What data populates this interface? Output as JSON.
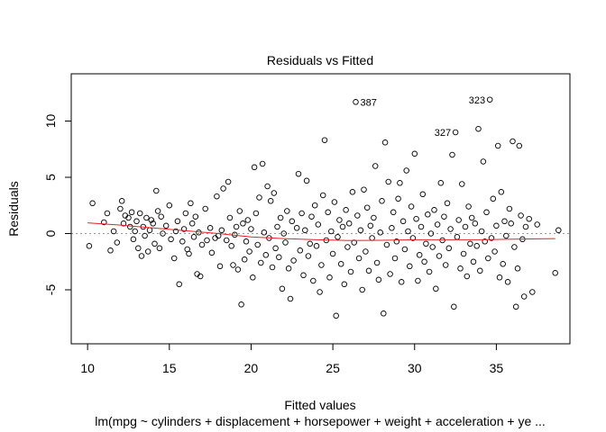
{
  "chart_data": {
    "type": "scatter",
    "title": "Residuals vs Fitted",
    "xlabel": "Fitted values",
    "ylabel": "Residuals",
    "subtitle": "lm(mpg ~ cylinders + displacement + horsepower + weight + acceleration + ye ...",
    "xlim": [
      9.0,
      39.5
    ],
    "ylim": [
      -9.8,
      14.2
    ],
    "x_ticks": [
      10,
      15,
      20,
      25,
      30,
      35
    ],
    "y_ticks": [
      -5,
      0,
      5,
      10
    ],
    "grid": false,
    "zero_line": 0,
    "colors": {
      "points": "#000000",
      "smooth": "#e8202a",
      "zero_line": "#999999"
    },
    "labeled_points": [
      {
        "label": "387",
        "x": 26.4,
        "y": 11.7
      },
      {
        "label": "323",
        "x": 34.6,
        "y": 11.9
      },
      {
        "label": "327",
        "x": 32.5,
        "y": 9.0
      }
    ],
    "smooth_line": [
      [
        10.0,
        0.95
      ],
      [
        12.0,
        0.75
      ],
      [
        14.0,
        0.5
      ],
      [
        16.0,
        0.25
      ],
      [
        18.0,
        0.0
      ],
      [
        20.0,
        -0.3
      ],
      [
        22.0,
        -0.45
      ],
      [
        24.0,
        -0.55
      ],
      [
        26.0,
        -0.62
      ],
      [
        28.0,
        -0.6
      ],
      [
        30.0,
        -0.55
      ],
      [
        32.0,
        -0.55
      ],
      [
        34.0,
        -0.55
      ],
      [
        36.0,
        -0.5
      ],
      [
        38.6,
        -0.45
      ]
    ],
    "points": [
      [
        10.1,
        -1.1
      ],
      [
        10.3,
        2.7
      ],
      [
        11.0,
        1.0
      ],
      [
        11.2,
        1.8
      ],
      [
        11.4,
        -1.5
      ],
      [
        11.6,
        0.2
      ],
      [
        11.8,
        -0.8
      ],
      [
        12.0,
        2.2
      ],
      [
        12.1,
        2.9
      ],
      [
        12.2,
        0.9
      ],
      [
        12.3,
        1.6
      ],
      [
        12.5,
        1.4
      ],
      [
        12.6,
        0.6
      ],
      [
        12.7,
        1.9
      ],
      [
        12.8,
        -0.5
      ],
      [
        12.9,
        0.2
      ],
      [
        13.0,
        1.1
      ],
      [
        13.1,
        -1.3
      ],
      [
        13.2,
        1.8
      ],
      [
        13.3,
        -2.0
      ],
      [
        13.4,
        0.6
      ],
      [
        13.5,
        -0.2
      ],
      [
        13.6,
        1.4
      ],
      [
        13.7,
        -1.6
      ],
      [
        13.8,
        0.3
      ],
      [
        13.9,
        1.2
      ],
      [
        14.0,
        0.9
      ],
      [
        14.1,
        -0.9
      ],
      [
        14.2,
        3.8
      ],
      [
        14.3,
        2.0
      ],
      [
        14.4,
        -1.3
      ],
      [
        14.5,
        1.5
      ],
      [
        14.6,
        0.0
      ],
      [
        14.8,
        0.7
      ],
      [
        15.0,
        2.5
      ],
      [
        15.1,
        -0.5
      ],
      [
        15.3,
        -2.2
      ],
      [
        15.4,
        0.2
      ],
      [
        15.5,
        1.1
      ],
      [
        15.6,
        -4.5
      ],
      [
        15.8,
        -0.7
      ],
      [
        15.9,
        0.4
      ],
      [
        16.0,
        1.8
      ],
      [
        16.1,
        -1.4
      ],
      [
        16.2,
        -1.8
      ],
      [
        16.3,
        2.7
      ],
      [
        16.4,
        0.9
      ],
      [
        16.5,
        -0.3
      ],
      [
        16.6,
        1.5
      ],
      [
        16.7,
        -3.6
      ],
      [
        16.8,
        0.1
      ],
      [
        16.9,
        -3.8
      ],
      [
        17.0,
        -1.0
      ],
      [
        17.2,
        2.2
      ],
      [
        17.3,
        -0.6
      ],
      [
        17.5,
        0.5
      ],
      [
        17.6,
        -1.7
      ],
      [
        17.8,
        -0.4
      ],
      [
        17.9,
        3.3
      ],
      [
        18.0,
        -0.2
      ],
      [
        18.1,
        -2.9
      ],
      [
        18.2,
        0.3
      ],
      [
        18.3,
        4.0
      ],
      [
        18.5,
        -0.6
      ],
      [
        18.6,
        4.6
      ],
      [
        18.7,
        1.4
      ],
      [
        18.8,
        -1.1
      ],
      [
        18.9,
        -2.8
      ],
      [
        19.0,
        -0.1
      ],
      [
        19.1,
        0.6
      ],
      [
        19.2,
        -3.2
      ],
      [
        19.3,
        2.0
      ],
      [
        19.4,
        -6.3
      ],
      [
        19.5,
        0.9
      ],
      [
        19.6,
        -2.3
      ],
      [
        19.7,
        -0.7
      ],
      [
        19.8,
        1.2
      ],
      [
        19.9,
        -1.6
      ],
      [
        20.0,
        0.4
      ],
      [
        20.1,
        -3.9
      ],
      [
        20.2,
        5.9
      ],
      [
        20.3,
        1.8
      ],
      [
        20.4,
        -1.0
      ],
      [
        20.5,
        3.2
      ],
      [
        20.6,
        -2.6
      ],
      [
        20.7,
        6.2
      ],
      [
        20.8,
        0.1
      ],
      [
        20.9,
        -1.9
      ],
      [
        21.0,
        4.2
      ],
      [
        21.1,
        -0.4
      ],
      [
        21.2,
        2.9
      ],
      [
        21.3,
        -3.0
      ],
      [
        21.4,
        3.6
      ],
      [
        21.5,
        -1.3
      ],
      [
        21.6,
        0.6
      ],
      [
        21.7,
        -2.1
      ],
      [
        21.8,
        1.4
      ],
      [
        21.9,
        -4.9
      ],
      [
        22.0,
        0.0
      ],
      [
        22.1,
        -0.8
      ],
      [
        22.2,
        2.0
      ],
      [
        22.3,
        -3.1
      ],
      [
        22.4,
        -5.8
      ],
      [
        22.5,
        1.1
      ],
      [
        22.6,
        -2.4
      ],
      [
        22.8,
        0.5
      ],
      [
        22.9,
        5.3
      ],
      [
        23.0,
        -1.5
      ],
      [
        23.1,
        1.8
      ],
      [
        23.2,
        -3.7
      ],
      [
        23.3,
        0.3
      ],
      [
        23.4,
        4.7
      ],
      [
        23.5,
        -2.0
      ],
      [
        23.6,
        -0.9
      ],
      [
        23.7,
        1.5
      ],
      [
        23.8,
        -4.2
      ],
      [
        23.9,
        2.5
      ],
      [
        24.0,
        -1.1
      ],
      [
        24.1,
        0.8
      ],
      [
        24.2,
        -5.2
      ],
      [
        24.3,
        -2.8
      ],
      [
        24.4,
        3.4
      ],
      [
        24.5,
        8.3
      ],
      [
        24.6,
        -0.6
      ],
      [
        24.7,
        1.9
      ],
      [
        24.8,
        -3.9
      ],
      [
        24.9,
        0.2
      ],
      [
        25.0,
        -1.8
      ],
      [
        25.1,
        2.8
      ],
      [
        25.2,
        -7.3
      ],
      [
        25.3,
        -0.3
      ],
      [
        25.4,
        1.2
      ],
      [
        25.5,
        -2.7
      ],
      [
        25.6,
        0.6
      ],
      [
        25.7,
        -4.5
      ],
      [
        25.8,
        2.1
      ],
      [
        25.9,
        -1.2
      ],
      [
        26.0,
        0.9
      ],
      [
        26.1,
        -3.4
      ],
      [
        26.2,
        3.7
      ],
      [
        26.3,
        -0.8
      ],
      [
        26.4,
        11.7
      ],
      [
        26.5,
        1.6
      ],
      [
        26.6,
        -2.2
      ],
      [
        26.7,
        0.3
      ],
      [
        26.8,
        -5.0
      ],
      [
        26.9,
        3.9
      ],
      [
        27.0,
        -1.6
      ],
      [
        27.1,
        2.3
      ],
      [
        27.2,
        -3.3
      ],
      [
        27.3,
        0.7
      ],
      [
        27.4,
        -0.4
      ],
      [
        27.5,
        1.4
      ],
      [
        27.6,
        6.0
      ],
      [
        27.7,
        -2.6
      ],
      [
        27.8,
        -4.1
      ],
      [
        27.9,
        0.1
      ],
      [
        28.0,
        2.9
      ],
      [
        28.1,
        -7.1
      ],
      [
        28.2,
        8.1
      ],
      [
        28.3,
        -1.0
      ],
      [
        28.4,
        4.6
      ],
      [
        28.5,
        -3.6
      ],
      [
        28.6,
        0.5
      ],
      [
        28.7,
        1.9
      ],
      [
        28.8,
        -2.2
      ],
      [
        28.9,
        -0.7
      ],
      [
        29.0,
        3.1
      ],
      [
        29.1,
        4.5
      ],
      [
        29.2,
        -4.3
      ],
      [
        29.3,
        1.1
      ],
      [
        29.4,
        -1.4
      ],
      [
        29.5,
        5.6
      ],
      [
        29.6,
        0.2
      ],
      [
        29.7,
        -2.9
      ],
      [
        29.8,
        2.4
      ],
      [
        29.9,
        -0.4
      ],
      [
        30.0,
        7.1
      ],
      [
        30.1,
        1.3
      ],
      [
        30.2,
        -4.2
      ],
      [
        30.3,
        -1.9
      ],
      [
        30.4,
        0.6
      ],
      [
        30.5,
        3.5
      ],
      [
        30.6,
        -2.5
      ],
      [
        30.7,
        -0.9
      ],
      [
        30.8,
        1.7
      ],
      [
        30.9,
        -3.4
      ],
      [
        31.0,
        0.0
      ],
      [
        31.1,
        -1.2
      ],
      [
        31.2,
        2.1
      ],
      [
        31.3,
        -4.9
      ],
      [
        31.4,
        0.8
      ],
      [
        31.5,
        -2.0
      ],
      [
        31.6,
        4.5
      ],
      [
        31.7,
        -0.6
      ],
      [
        31.8,
        1.5
      ],
      [
        31.9,
        -2.8
      ],
      [
        32.0,
        2.7
      ],
      [
        32.1,
        -1.3
      ],
      [
        32.2,
        0.4
      ],
      [
        32.3,
        7.0
      ],
      [
        32.4,
        -6.5
      ],
      [
        32.5,
        9.0
      ],
      [
        32.6,
        -0.3
      ],
      [
        32.7,
        1.2
      ],
      [
        32.8,
        -3.1
      ],
      [
        32.9,
        4.4
      ],
      [
        33.0,
        -1.8
      ],
      [
        33.1,
        0.6
      ],
      [
        33.2,
        -3.8
      ],
      [
        33.3,
        2.4
      ],
      [
        33.4,
        -0.9
      ],
      [
        33.5,
        1.4
      ],
      [
        33.6,
        -2.5
      ],
      [
        33.7,
        0.9
      ],
      [
        33.8,
        -1.1
      ],
      [
        33.9,
        9.3
      ],
      [
        34.0,
        -3.3
      ],
      [
        34.1,
        0.2
      ],
      [
        34.2,
        6.4
      ],
      [
        34.3,
        -0.7
      ],
      [
        34.4,
        1.9
      ],
      [
        34.5,
        -2.2
      ],
      [
        34.6,
        11.9
      ],
      [
        34.7,
        -0.4
      ],
      [
        34.8,
        3.1
      ],
      [
        34.9,
        -1.6
      ],
      [
        35.0,
        0.7
      ],
      [
        35.1,
        7.8
      ],
      [
        35.2,
        -3.9
      ],
      [
        35.3,
        3.7
      ],
      [
        35.4,
        -2.7
      ],
      [
        35.5,
        1.1
      ],
      [
        35.6,
        -0.2
      ],
      [
        35.7,
        -4.3
      ],
      [
        35.8,
        2.2
      ],
      [
        35.9,
        0.9
      ],
      [
        36.0,
        8.2
      ],
      [
        36.1,
        -1.2
      ],
      [
        36.2,
        -6.5
      ],
      [
        36.3,
        -3.1
      ],
      [
        36.4,
        7.8
      ],
      [
        36.5,
        1.6
      ],
      [
        36.6,
        -0.5
      ],
      [
        36.7,
        -5.6
      ],
      [
        36.8,
        0.6
      ],
      [
        37.0,
        1.3
      ],
      [
        37.2,
        -5.2
      ],
      [
        37.5,
        0.8
      ],
      [
        38.6,
        -3.5
      ],
      [
        38.8,
        0.3
      ]
    ]
  }
}
